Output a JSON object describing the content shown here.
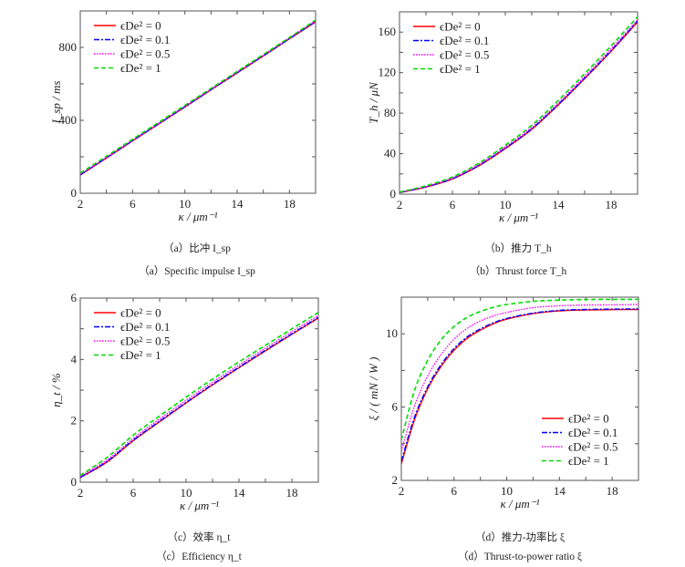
{
  "legend_labels": [
    "ϵDe² = 0",
    "ϵDe² = 0.1",
    "ϵDe² = 0.5",
    "ϵDe² = 1"
  ],
  "series_styles": [
    {
      "color": "#ff0000",
      "dash": "solid"
    },
    {
      "color": "#0000ff",
      "dash": "dash-dot"
    },
    {
      "color": "#ff00ff",
      "dash": "dotted"
    },
    {
      "color": "#00dd00",
      "dash": "dashed"
    }
  ],
  "chart_data": [
    {
      "id": "a",
      "type": "line",
      "xlabel": "κ / μm⁻¹",
      "ylabel": "I_sp / ms",
      "xlim": [
        2,
        20
      ],
      "ylim": [
        0,
        1000
      ],
      "xticks": [
        "2",
        "6",
        "10",
        "14",
        "18"
      ],
      "yticks": [
        "0",
        "400",
        "800"
      ],
      "legend": "top-left",
      "caption_cn": "（a）比冲 I_sp",
      "caption_en": "（a）Specific impulse I_sp",
      "x": [
        2,
        4,
        6,
        8,
        10,
        12,
        14,
        16,
        18,
        20
      ],
      "series": [
        {
          "name": "ϵDe² = 0",
          "values": [
            100,
            193,
            287,
            380,
            473,
            567,
            660,
            753,
            847,
            940
          ]
        },
        {
          "name": "ϵDe² = 0.1",
          "values": [
            101,
            194,
            288,
            381,
            474,
            568,
            661,
            754,
            848,
            942
          ]
        },
        {
          "name": "ϵDe² = 0.5",
          "values": [
            104,
            197,
            291,
            384,
            478,
            571,
            665,
            758,
            852,
            946
          ]
        },
        {
          "name": "ϵDe² = 1",
          "values": [
            110,
            203,
            296,
            389,
            482,
            575,
            668,
            761,
            854,
            950
          ]
        }
      ]
    },
    {
      "id": "b",
      "type": "line",
      "xlabel": "κ / μm⁻¹",
      "ylabel": "T_h / μN",
      "xlim": [
        2,
        20
      ],
      "ylim": [
        0,
        180
      ],
      "xticks": [
        "2",
        "6",
        "10",
        "14",
        "18"
      ],
      "yticks": [
        "0",
        "40",
        "80",
        "120",
        "160"
      ],
      "legend": "top-left",
      "caption_cn": "（b）推力 T_h",
      "caption_en": "（b）Thrust force T_h",
      "x": [
        2,
        4,
        6,
        8,
        10,
        12,
        14,
        16,
        18,
        20
      ],
      "series": [
        {
          "name": "ϵDe² = 0",
          "values": [
            1.5,
            7,
            15,
            28,
            45,
            64,
            88,
            114,
            141,
            170
          ]
        },
        {
          "name": "ϵDe² = 0.1",
          "values": [
            1.6,
            7.2,
            15.3,
            28.4,
            45.5,
            64.6,
            88.6,
            114.7,
            141.8,
            171
          ]
        },
        {
          "name": "ϵDe² = 0.5",
          "values": [
            1.8,
            7.6,
            16,
            29.3,
            46.6,
            66,
            90,
            116.4,
            143.7,
            172
          ]
        },
        {
          "name": "ϵDe² = 1",
          "values": [
            2,
            8.3,
            17,
            30.5,
            48.3,
            68,
            92.5,
            119,
            146.5,
            175
          ]
        }
      ]
    },
    {
      "id": "c",
      "type": "line",
      "xlabel": "κ / μm⁻¹",
      "ylabel": "η_t / %",
      "xlim": [
        2,
        20
      ],
      "ylim": [
        0,
        6
      ],
      "xticks": [
        "2",
        "6",
        "10",
        "14",
        "18"
      ],
      "yticks": [
        "0",
        "2",
        "4",
        "6"
      ],
      "legend": "top-left",
      "caption_cn": "（c）效率 η_t",
      "caption_en": "（c）Efficiency η_t",
      "x": [
        2,
        4,
        6,
        8,
        10,
        12,
        14,
        16,
        18,
        20
      ],
      "series": [
        {
          "name": "ϵDe² = 0",
          "values": [
            0.15,
            0.65,
            1.35,
            1.97,
            2.58,
            3.17,
            3.73,
            4.28,
            4.82,
            5.35
          ]
        },
        {
          "name": "ϵDe² = 0.1",
          "values": [
            0.16,
            0.67,
            1.37,
            1.99,
            2.6,
            3.19,
            3.75,
            4.3,
            4.84,
            5.37
          ]
        },
        {
          "name": "ϵDe² = 0.5",
          "values": [
            0.19,
            0.72,
            1.43,
            2.06,
            2.67,
            3.26,
            3.82,
            4.37,
            4.91,
            5.43
          ]
        },
        {
          "name": "ϵDe² = 1",
          "values": [
            0.22,
            0.8,
            1.53,
            2.16,
            2.77,
            3.36,
            3.92,
            4.46,
            5.0,
            5.53
          ]
        }
      ]
    },
    {
      "id": "d",
      "type": "line",
      "xlabel": "κ / μm⁻¹",
      "ylabel": "ξ / ( mN / W )",
      "xlim": [
        2,
        20
      ],
      "ylim": [
        2,
        12
      ],
      "xticks": [
        "2",
        "6",
        "10",
        "14",
        "18"
      ],
      "yticks": [
        "2",
        "6",
        "10"
      ],
      "legend": "bottom-right",
      "caption_cn": "（d）推力-功率比 ξ",
      "caption_en": "（d）Thrust-to-power ratio ξ",
      "x": [
        2,
        3,
        4,
        5,
        6,
        7,
        8,
        9,
        10,
        12,
        14,
        16,
        18,
        20
      ],
      "series": [
        {
          "name": "ϵDe² = 0",
          "values": [
            2.9,
            5.3,
            7.0,
            8.2,
            9.1,
            9.75,
            10.2,
            10.55,
            10.8,
            11.1,
            11.25,
            11.3,
            11.32,
            11.33
          ]
        },
        {
          "name": "ϵDe² = 0.1",
          "values": [
            3.05,
            5.45,
            7.1,
            8.3,
            9.2,
            9.83,
            10.27,
            10.6,
            10.84,
            11.13,
            11.28,
            11.33,
            11.35,
            11.36
          ]
        },
        {
          "name": "ϵDe² = 0.5",
          "values": [
            3.6,
            6.05,
            7.7,
            8.85,
            9.7,
            10.3,
            10.7,
            10.98,
            11.17,
            11.43,
            11.53,
            11.57,
            11.58,
            11.6
          ]
        },
        {
          "name": "ϵDe² = 1",
          "values": [
            4.2,
            6.9,
            8.55,
            9.65,
            10.4,
            10.9,
            11.22,
            11.45,
            11.6,
            11.77,
            11.84,
            11.87,
            11.88,
            11.88
          ]
        }
      ]
    }
  ]
}
